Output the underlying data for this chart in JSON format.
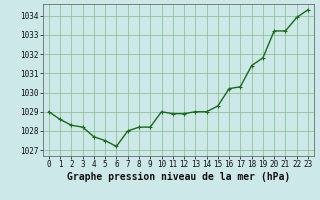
{
  "x": [
    0,
    1,
    2,
    3,
    4,
    5,
    6,
    7,
    8,
    9,
    10,
    11,
    12,
    13,
    14,
    15,
    16,
    17,
    18,
    19,
    20,
    21,
    22,
    23
  ],
  "y": [
    1029.0,
    1028.6,
    1028.3,
    1028.2,
    1027.7,
    1027.5,
    1027.2,
    1028.0,
    1028.2,
    1028.2,
    1029.0,
    1028.9,
    1028.9,
    1029.0,
    1029.0,
    1029.3,
    1030.2,
    1030.3,
    1031.4,
    1031.8,
    1033.2,
    1033.2,
    1033.9,
    1034.3
  ],
  "line_color": "#1a6b1a",
  "marker_color": "#1a6b1a",
  "bg_color": "#cce8e8",
  "grid_color": "#88bb88",
  "xlabel": "Graphe pression niveau de la mer (hPa)",
  "ylim": [
    1026.7,
    1034.6
  ],
  "xlim": [
    -0.5,
    23.5
  ],
  "yticks": [
    1027,
    1028,
    1029,
    1030,
    1031,
    1032,
    1033,
    1034
  ],
  "xticks": [
    0,
    1,
    2,
    3,
    4,
    5,
    6,
    7,
    8,
    9,
    10,
    11,
    12,
    13,
    14,
    15,
    16,
    17,
    18,
    19,
    20,
    21,
    22,
    23
  ],
  "tick_fontsize": 5.5,
  "label_fontsize": 7,
  "linewidth": 1.0,
  "markersize": 2.5
}
